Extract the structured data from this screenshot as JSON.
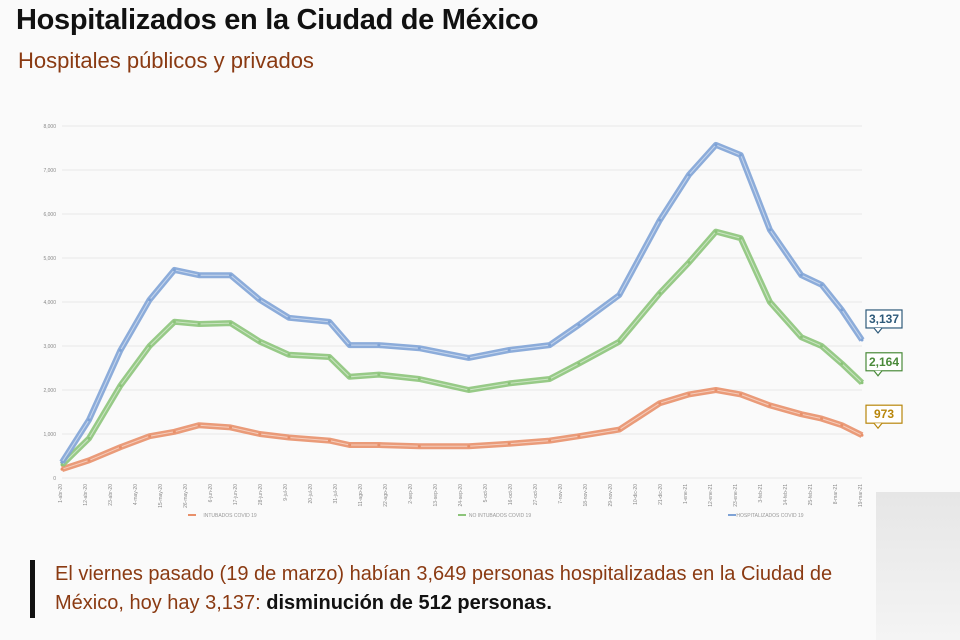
{
  "title": "Hospitalizados en la Ciudad de México",
  "subtitle": "Hospitales públicos y privados",
  "caption": {
    "text": "El viernes pasado (19 de marzo) habían 3,649 personas hospitalizadas en la Ciudad de México, hoy hay 3,137: ",
    "bold": "disminución de 512 personas."
  },
  "chart_data": {
    "type": "line",
    "title": "",
    "xlabel": "",
    "ylabel": "",
    "ylim": [
      0,
      8000
    ],
    "y_ticks": [
      "0",
      "1,000",
      "2,000",
      "3,000",
      "4,000",
      "5,000",
      "6,000",
      "7,000",
      "8,000"
    ],
    "grid": true,
    "legend_position": "bottom",
    "x_tick_labels": [
      "1-abr-20",
      "12-abr-20",
      "23-abr-20",
      "4-may-20",
      "15-may-20",
      "26-may-20",
      "6-jun-20",
      "17-jun-20",
      "28-jun-20",
      "9-jul-20",
      "20-jul-20",
      "31-jul-20",
      "11-ago-20",
      "22-ago-20",
      "2-sep-20",
      "13-sep-20",
      "24-sep-20",
      "5-oct-20",
      "16-oct-20",
      "27-oct-20",
      "7-nov-20",
      "18-nov-20",
      "29-nov-20",
      "10-dic-20",
      "21-dic-20",
      "1-ene-21",
      "12-ene-21",
      "23-ene-21",
      "3-feb-21",
      "14-feb-21",
      "25-feb-21",
      "8-mar-21",
      "19-mar-21"
    ],
    "x": [
      "2020-04-01",
      "2020-04-13",
      "2020-04-27",
      "2020-05-10",
      "2020-05-21",
      "2020-06-01",
      "2020-06-15",
      "2020-06-28",
      "2020-07-11",
      "2020-07-29",
      "2020-08-07",
      "2020-08-20",
      "2020-09-07",
      "2020-09-29",
      "2020-10-17",
      "2020-11-04",
      "2020-11-17",
      "2020-12-05",
      "2020-12-23",
      "2021-01-05",
      "2021-01-17",
      "2021-01-28",
      "2021-02-10",
      "2021-02-24",
      "2021-03-05",
      "2021-03-14",
      "2021-03-23"
    ],
    "series": [
      {
        "name": "INTUBADOS COVID 19",
        "color": "#e8906a",
        "end_label": "973",
        "label_color": "#b8860b",
        "values": [
          200,
          400,
          700,
          950,
          1050,
          1200,
          1150,
          1000,
          920,
          850,
          750,
          750,
          720,
          720,
          780,
          850,
          950,
          1100,
          1700,
          1900,
          2000,
          1900,
          1650,
          1450,
          1350,
          1200,
          973
        ]
      },
      {
        "name": "NO INTUBADOS COVID 19",
        "color": "#8cc47a",
        "end_label": "2,164",
        "label_color": "#4a8a3a",
        "values": [
          300,
          900,
          2100,
          3000,
          3550,
          3500,
          3520,
          3100,
          2800,
          2750,
          2300,
          2350,
          2250,
          2000,
          2150,
          2250,
          2600,
          3100,
          4200,
          4900,
          5600,
          5450,
          4000,
          3200,
          3000,
          2600,
          2164
        ]
      },
      {
        "name": "HOSPITALIZADOS COVID 19",
        "color": "#7fa3d6",
        "end_label": "3,137",
        "label_color": "#2e5a7a",
        "values": [
          360,
          1320,
          2900,
          4050,
          4730,
          4610,
          4610,
          4050,
          3640,
          3550,
          3020,
          3020,
          2950,
          2730,
          2910,
          3020,
          3480,
          4160,
          5860,
          6890,
          7570,
          7340,
          5640,
          4610,
          4390,
          3820,
          3137
        ]
      }
    ]
  }
}
